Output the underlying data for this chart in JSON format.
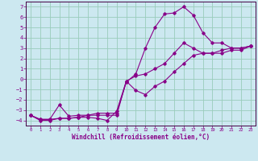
{
  "xlabel": "Windchill (Refroidissement éolien,°C)",
  "background_color": "#cce8f0",
  "grid_color": "#99ccbb",
  "line_color": "#880088",
  "spine_color": "#440044",
  "xlim": [
    -0.5,
    23.5
  ],
  "ylim": [
    -4.5,
    7.5
  ],
  "xticks": [
    0,
    1,
    2,
    3,
    4,
    5,
    6,
    7,
    8,
    9,
    10,
    11,
    12,
    13,
    14,
    15,
    16,
    17,
    18,
    19,
    20,
    21,
    22,
    23
  ],
  "yticks": [
    -4,
    -3,
    -2,
    -1,
    0,
    1,
    2,
    3,
    4,
    5,
    6,
    7
  ],
  "line1_x": [
    0,
    1,
    2,
    3,
    4,
    5,
    6,
    7,
    8,
    9,
    10,
    11,
    12,
    13,
    14,
    15,
    16,
    17,
    18,
    19,
    20,
    21,
    22,
    23
  ],
  "line1_y": [
    -3.5,
    -4.0,
    -4.0,
    -3.8,
    -3.8,
    -3.7,
    -3.7,
    -3.8,
    -4.0,
    -3.1,
    -0.2,
    0.3,
    0.5,
    1.0,
    1.5,
    2.5,
    3.5,
    3.0,
    2.5,
    2.5,
    2.8,
    3.0,
    3.0,
    3.2
  ],
  "line2_x": [
    0,
    1,
    2,
    3,
    4,
    5,
    6,
    7,
    8,
    9,
    10,
    11,
    12,
    13,
    14,
    15,
    16,
    17,
    18,
    19,
    20,
    21,
    22,
    23
  ],
  "line2_y": [
    -3.5,
    -3.9,
    -3.9,
    -2.5,
    -3.6,
    -3.5,
    -3.5,
    -3.3,
    -3.3,
    -3.3,
    -0.3,
    0.5,
    3.0,
    5.0,
    6.3,
    6.4,
    7.0,
    6.2,
    4.5,
    3.5,
    3.5,
    3.0,
    3.0,
    3.2
  ],
  "line3_x": [
    0,
    1,
    2,
    3,
    4,
    5,
    6,
    7,
    8,
    9,
    10,
    11,
    12,
    13,
    14,
    15,
    16,
    17,
    18,
    19,
    20,
    21,
    22,
    23
  ],
  "line3_y": [
    -3.5,
    -3.9,
    -3.9,
    -3.8,
    -3.8,
    -3.7,
    -3.5,
    -3.5,
    -3.5,
    -3.5,
    -0.2,
    -1.1,
    -1.5,
    -0.7,
    -0.2,
    0.7,
    1.5,
    2.3,
    2.5,
    2.5,
    2.5,
    2.8,
    2.8,
    3.2
  ]
}
